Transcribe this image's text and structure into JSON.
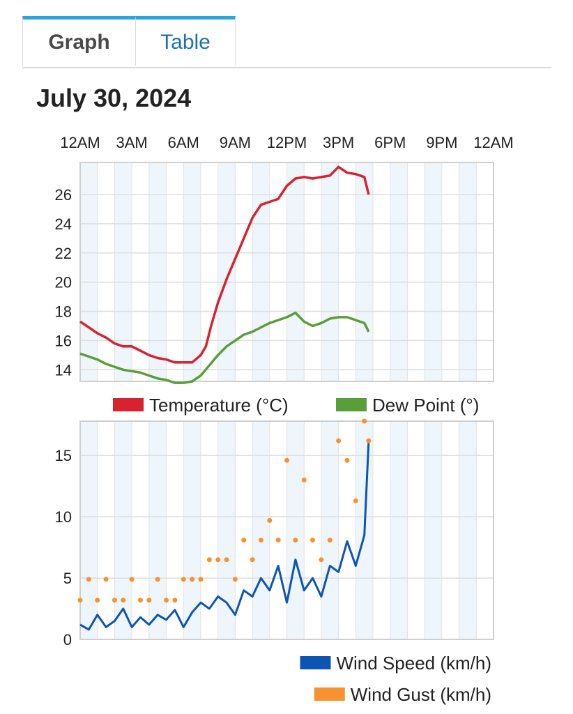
{
  "tabs": [
    {
      "label": "Graph",
      "active": true
    },
    {
      "label": "Table",
      "active": false
    }
  ],
  "date_title": "July 30, 2024",
  "chart_data": [
    {
      "type": "line",
      "x_tick_labels": [
        "12AM",
        "3AM",
        "6AM",
        "9AM",
        "12PM",
        "3PM",
        "6PM",
        "9PM",
        "12AM"
      ],
      "xlim_hours": [
        0,
        24
      ],
      "ylim": [
        13.2,
        28.2
      ],
      "y_ticks": [
        14,
        16,
        18,
        20,
        22,
        24,
        26
      ],
      "grid": true,
      "legend_position": "bottom-center",
      "series": [
        {
          "name": "Temperature (°C)",
          "color": "#d7232f",
          "x": [
            0,
            0.5,
            1,
            1.5,
            2,
            2.5,
            3,
            3.5,
            4,
            4.5,
            5,
            5.5,
            6,
            6.5,
            7,
            7.3,
            7.6,
            8,
            8.5,
            9,
            9.5,
            10,
            10.5,
            11,
            11.5,
            12,
            12.5,
            13,
            13.5,
            14,
            14.5,
            15,
            15.5,
            16,
            16.5,
            16.75
          ],
          "values": [
            17.3,
            16.9,
            16.5,
            16.2,
            15.8,
            15.6,
            15.6,
            15.3,
            15.0,
            14.8,
            14.7,
            14.5,
            14.5,
            14.5,
            15.0,
            15.6,
            17.0,
            18.6,
            20.2,
            21.6,
            23.0,
            24.4,
            25.3,
            25.5,
            25.7,
            26.6,
            27.1,
            27.2,
            27.1,
            27.2,
            27.3,
            27.9,
            27.5,
            27.4,
            27.2,
            26.0
          ]
        },
        {
          "name": "Dew Point (°)",
          "color": "#5a9e3a",
          "x": [
            0,
            0.5,
            1,
            1.5,
            2,
            2.5,
            3,
            3.5,
            4,
            4.5,
            5,
            5.5,
            6,
            6.5,
            7,
            7.5,
            8,
            8.5,
            9,
            9.5,
            10,
            10.5,
            11,
            11.5,
            12,
            12.5,
            13,
            13.5,
            14,
            14.5,
            15,
            15.5,
            16,
            16.5,
            16.75
          ],
          "values": [
            15.1,
            14.9,
            14.7,
            14.4,
            14.2,
            14.0,
            13.9,
            13.8,
            13.6,
            13.4,
            13.3,
            13.1,
            13.1,
            13.2,
            13.6,
            14.3,
            15.0,
            15.6,
            16.0,
            16.4,
            16.6,
            16.9,
            17.2,
            17.4,
            17.6,
            17.9,
            17.3,
            17.0,
            17.2,
            17.5,
            17.6,
            17.6,
            17.4,
            17.2,
            16.6
          ]
        }
      ]
    },
    {
      "type": "line",
      "x_tick_labels": [
        "12AM",
        "3AM",
        "6AM",
        "9AM",
        "12PM",
        "3PM",
        "6PM",
        "9PM",
        "12AM"
      ],
      "xlim_hours": [
        0,
        24
      ],
      "ylim": [
        0,
        17.8
      ],
      "y_ticks": [
        0,
        5,
        10,
        15
      ],
      "grid": true,
      "legend_position": "bottom-right",
      "series": [
        {
          "name": "Wind Speed (km/h)",
          "color": "#0d54b4",
          "x": [
            0,
            0.5,
            1,
            1.5,
            2,
            2.5,
            3,
            3.5,
            4,
            4.5,
            5,
            5.5,
            6,
            6.5,
            7,
            7.5,
            8,
            8.5,
            9,
            9.5,
            10,
            10.5,
            11,
            11.5,
            12,
            12.5,
            13,
            13.5,
            14,
            14.5,
            15,
            15.5,
            16,
            16.5,
            16.75
          ],
          "values": [
            1.2,
            0.8,
            2.0,
            1.0,
            1.5,
            2.5,
            1.0,
            1.8,
            1.2,
            2.0,
            1.6,
            2.4,
            1.0,
            2.2,
            3.0,
            2.5,
            3.5,
            3.0,
            2.0,
            4.0,
            3.5,
            5.0,
            4.0,
            6.0,
            3.0,
            6.5,
            4.0,
            5.0,
            3.5,
            6.0,
            5.5,
            8.0,
            6.0,
            8.5,
            16.2
          ]
        },
        {
          "name": "Wind Gust (km/h)",
          "color": "#f7922f",
          "x": [
            0,
            0.5,
            1,
            1.5,
            2,
            2.5,
            3,
            3.5,
            4,
            4.5,
            5,
            5.5,
            6,
            6.5,
            7,
            7.5,
            8,
            8.5,
            9,
            9.5,
            10,
            10.5,
            11,
            11.5,
            12,
            12.5,
            13,
            13.5,
            14,
            14.5,
            15,
            15.5,
            16,
            16.5,
            16.75
          ],
          "values": [
            3.2,
            4.9,
            3.2,
            4.9,
            3.2,
            3.2,
            4.9,
            3.2,
            3.2,
            4.9,
            3.2,
            3.2,
            4.9,
            4.9,
            4.9,
            6.5,
            6.5,
            6.5,
            4.9,
            8.1,
            6.5,
            8.1,
            9.7,
            8.1,
            14.6,
            8.1,
            13.0,
            8.1,
            6.5,
            8.1,
            16.2,
            14.6,
            11.3,
            17.8,
            16.2
          ]
        }
      ]
    }
  ]
}
